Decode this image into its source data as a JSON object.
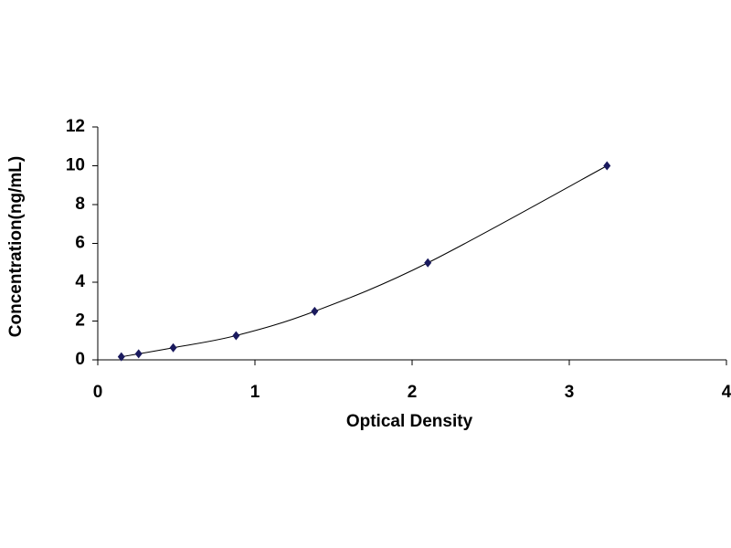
{
  "chart_data": {
    "type": "scatter",
    "x_label": "Optical Density",
    "y_label": "Concentration(ng/mL)",
    "x": [
      0.15,
      0.26,
      0.48,
      0.88,
      1.38,
      2.1,
      3.24
    ],
    "values": [
      0.156,
      0.312,
      0.625,
      1.25,
      2.5,
      5,
      10
    ],
    "color": "#1a1a5e",
    "line_color": "#000000",
    "line": true,
    "xlim": [
      0,
      4
    ],
    "xticks": [
      0,
      1,
      2,
      3,
      4
    ],
    "ylim": [
      0,
      12
    ],
    "yticks": [
      0,
      2,
      4,
      6,
      8,
      10,
      12
    ],
    "grid": false
  }
}
